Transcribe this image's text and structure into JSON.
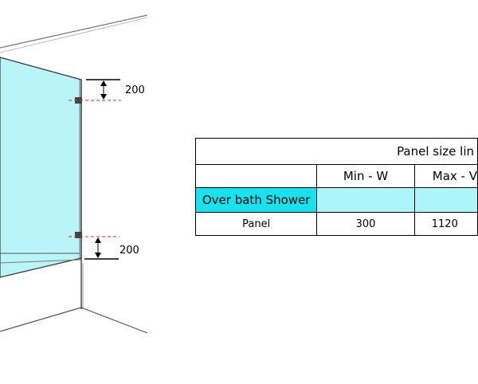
{
  "dimensions": {
    "top_gap": "200",
    "bottom_gap": "200"
  },
  "colors": {
    "panel_fill": "#b9f5f8",
    "highlight_cell": "#18e3ec",
    "light_cell": "#abf5fb",
    "guide_line": "#e0242d"
  },
  "table": {
    "title": "Panel size lin",
    "columns": [
      "Min - W",
      "Max - V"
    ],
    "group_label": "Over bath Shower",
    "rows": [
      {
        "label": "Panel",
        "min_w": "300",
        "max_w": "1120"
      }
    ]
  }
}
